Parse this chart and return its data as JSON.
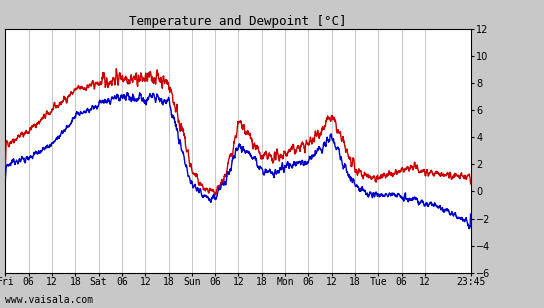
{
  "title": "Temperature and Dewpoint [°C]",
  "ylim": [
    -6,
    12
  ],
  "yticks": [
    -6,
    -4,
    -2,
    0,
    2,
    4,
    6,
    8,
    10,
    12
  ],
  "x_tick_labels": [
    "Fri",
    "06",
    "12",
    "18",
    "Sat",
    "06",
    "12",
    "18",
    "Sun",
    "06",
    "12",
    "18",
    "Mon",
    "06",
    "12",
    "18",
    "Tue",
    "06",
    "12",
    "23:45"
  ],
  "x_tick_positions": [
    0,
    6,
    12,
    18,
    24,
    30,
    36,
    42,
    48,
    54,
    60,
    66,
    72,
    78,
    84,
    90,
    96,
    102,
    108,
    119.75
  ],
  "total_hours": 119.75,
  "watermark": "www.vaisala.com",
  "bg_color": "#c8c8c8",
  "plot_bg_color": "#ffffff",
  "grid_color": "#b0b0b0",
  "temp_color": "#cc0000",
  "dew_color": "#0000cc",
  "line_width": 1.0,
  "title_fontsize": 9,
  "tick_fontsize": 7,
  "watermark_fontsize": 7
}
